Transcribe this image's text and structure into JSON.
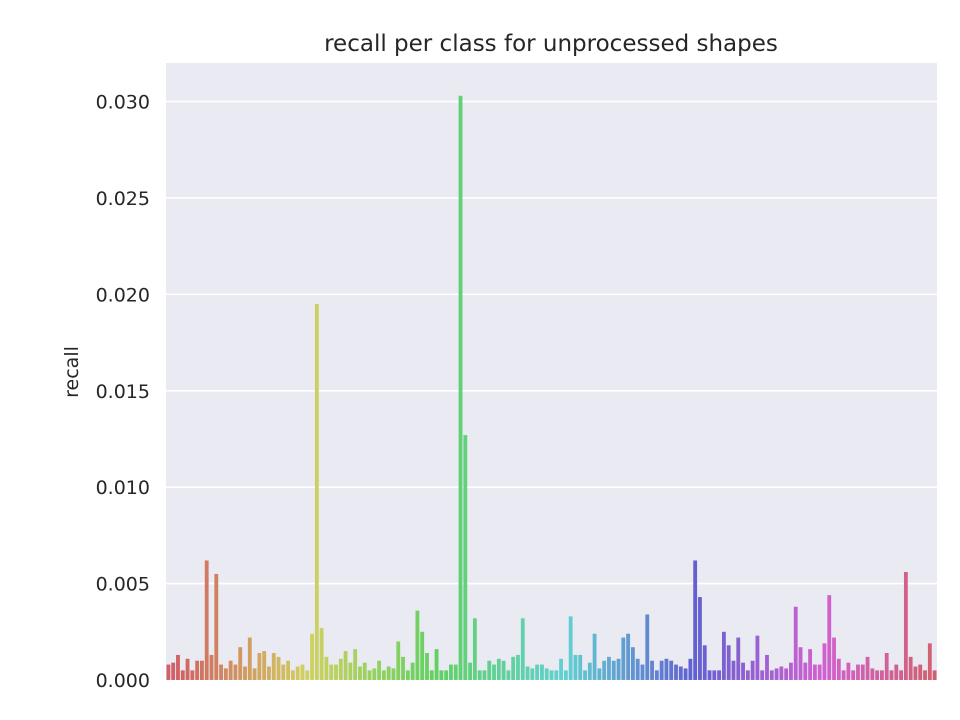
{
  "chart_data": {
    "type": "bar",
    "title": "recall per class for unprocessed shapes",
    "xlabel": "",
    "ylabel": "recall",
    "ylim": [
      0,
      0.032
    ],
    "yticks": [
      "0.000",
      "0.005",
      "0.010",
      "0.015",
      "0.020",
      "0.025",
      "0.030"
    ],
    "ytick_values": [
      0,
      0.005,
      0.01,
      0.015,
      0.02,
      0.025,
      0.03
    ],
    "grid": true,
    "background": "#eaeaf2",
    "values": [
      0.0008,
      0.0009,
      0.0013,
      0.0005,
      0.0011,
      0.0005,
      0.001,
      0.001,
      0.0062,
      0.0013,
      0.0055,
      0.0008,
      0.0006,
      0.001,
      0.0008,
      0.0017,
      0.0007,
      0.0022,
      0.0006,
      0.0014,
      0.0015,
      0.0007,
      0.0014,
      0.0012,
      0.0008,
      0.001,
      0.0005,
      0.0007,
      0.0008,
      0.0005,
      0.0024,
      0.0195,
      0.0027,
      0.0012,
      0.0008,
      0.0008,
      0.0011,
      0.0015,
      0.0009,
      0.0016,
      0.0007,
      0.0009,
      0.0005,
      0.0006,
      0.001,
      0.0005,
      0.0007,
      0.0006,
      0.002,
      0.0012,
      0.0005,
      0.0009,
      0.0036,
      0.0025,
      0.0014,
      0.0005,
      0.0016,
      0.0005,
      0.0005,
      0.0008,
      0.0008,
      0.0303,
      0.0127,
      0.0009,
      0.0032,
      0.0005,
      0.0005,
      0.001,
      0.0008,
      0.0011,
      0.001,
      0.0005,
      0.0012,
      0.0013,
      0.0032,
      0.0007,
      0.0006,
      0.0008,
      0.0008,
      0.0006,
      0.0005,
      0.0005,
      0.0011,
      0.0005,
      0.0033,
      0.0013,
      0.0013,
      0.0005,
      0.0009,
      0.0024,
      0.0006,
      0.001,
      0.0012,
      0.001,
      0.0011,
      0.0022,
      0.0024,
      0.0017,
      0.0011,
      0.0008,
      0.0034,
      0.001,
      0.0005,
      0.001,
      0.0011,
      0.001,
      0.0008,
      0.0007,
      0.0006,
      0.0011,
      0.0062,
      0.0043,
      0.0018,
      0.0005,
      0.0005,
      0.0005,
      0.0025,
      0.0018,
      0.001,
      0.0022,
      0.0009,
      0.0005,
      0.001,
      0.0023,
      0.0005,
      0.0013,
      0.0005,
      0.0006,
      0.0007,
      0.0006,
      0.0009,
      0.0038,
      0.0017,
      0.0009,
      0.0016,
      0.0008,
      0.0008,
      0.0019,
      0.0044,
      0.0022,
      0.0011,
      0.0005,
      0.0009,
      0.0005,
      0.0008,
      0.0008,
      0.0012,
      0.0006,
      0.0005,
      0.0005,
      0.0014,
      0.0005,
      0.0008,
      0.0005,
      0.0056,
      0.0012,
      0.0007,
      0.0008,
      0.0005,
      0.0019,
      0.0005
    ]
  }
}
